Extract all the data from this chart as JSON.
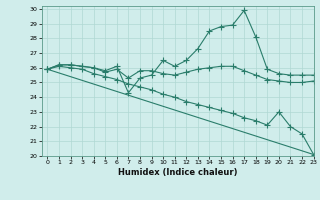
{
  "title": "",
  "xlabel": "Humidex (Indice chaleur)",
  "ylabel": "",
  "xlim": [
    -0.5,
    23
  ],
  "ylim": [
    20,
    30.2
  ],
  "yticks": [
    20,
    21,
    22,
    23,
    24,
    25,
    26,
    27,
    28,
    29,
    30
  ],
  "xticks": [
    0,
    1,
    2,
    3,
    4,
    5,
    6,
    7,
    8,
    9,
    10,
    11,
    12,
    13,
    14,
    15,
    16,
    17,
    18,
    19,
    20,
    21,
    22,
    23
  ],
  "bg_color": "#d0edeb",
  "grid_color": "#b0d8d4",
  "line_color": "#2a7d6b",
  "series": [
    {
      "x": [
        0,
        1,
        2,
        3,
        4,
        5,
        6,
        7,
        8,
        9,
        10,
        11,
        12,
        13,
        14,
        15,
        16,
        17,
        18,
        19,
        20,
        21,
        22,
        23
      ],
      "y": [
        25.9,
        26.2,
        26.2,
        26.1,
        26.0,
        25.8,
        26.1,
        24.3,
        25.3,
        25.5,
        26.5,
        26.1,
        26.5,
        27.3,
        28.5,
        28.8,
        28.9,
        29.9,
        28.1,
        25.9,
        25.6,
        25.5,
        25.5,
        25.5
      ]
    },
    {
      "x": [
        0,
        1,
        2,
        3,
        4,
        5,
        6,
        7,
        8,
        9,
        10,
        11,
        12,
        13,
        14,
        15,
        16,
        17,
        18,
        19,
        20,
        21,
        22,
        23
      ],
      "y": [
        25.9,
        26.2,
        26.2,
        26.1,
        26.0,
        25.7,
        25.9,
        25.3,
        25.8,
        25.8,
        25.6,
        25.5,
        25.7,
        25.9,
        26.0,
        26.1,
        26.1,
        25.8,
        25.5,
        25.2,
        25.1,
        25.0,
        25.0,
        25.1
      ]
    },
    {
      "x": [
        0,
        1,
        2,
        3,
        4,
        5,
        6,
        7,
        8,
        9,
        10,
        11,
        12,
        13,
        14,
        15,
        16,
        17,
        18,
        19,
        20,
        21,
        22,
        23
      ],
      "y": [
        25.9,
        26.1,
        26.0,
        25.9,
        25.6,
        25.4,
        25.2,
        24.9,
        24.7,
        24.5,
        24.2,
        24.0,
        23.7,
        23.5,
        23.3,
        23.1,
        22.9,
        22.6,
        22.4,
        22.1,
        23.0,
        22.0,
        21.5,
        20.1
      ]
    },
    {
      "x": [
        0,
        23
      ],
      "y": [
        25.9,
        20.1
      ]
    }
  ]
}
